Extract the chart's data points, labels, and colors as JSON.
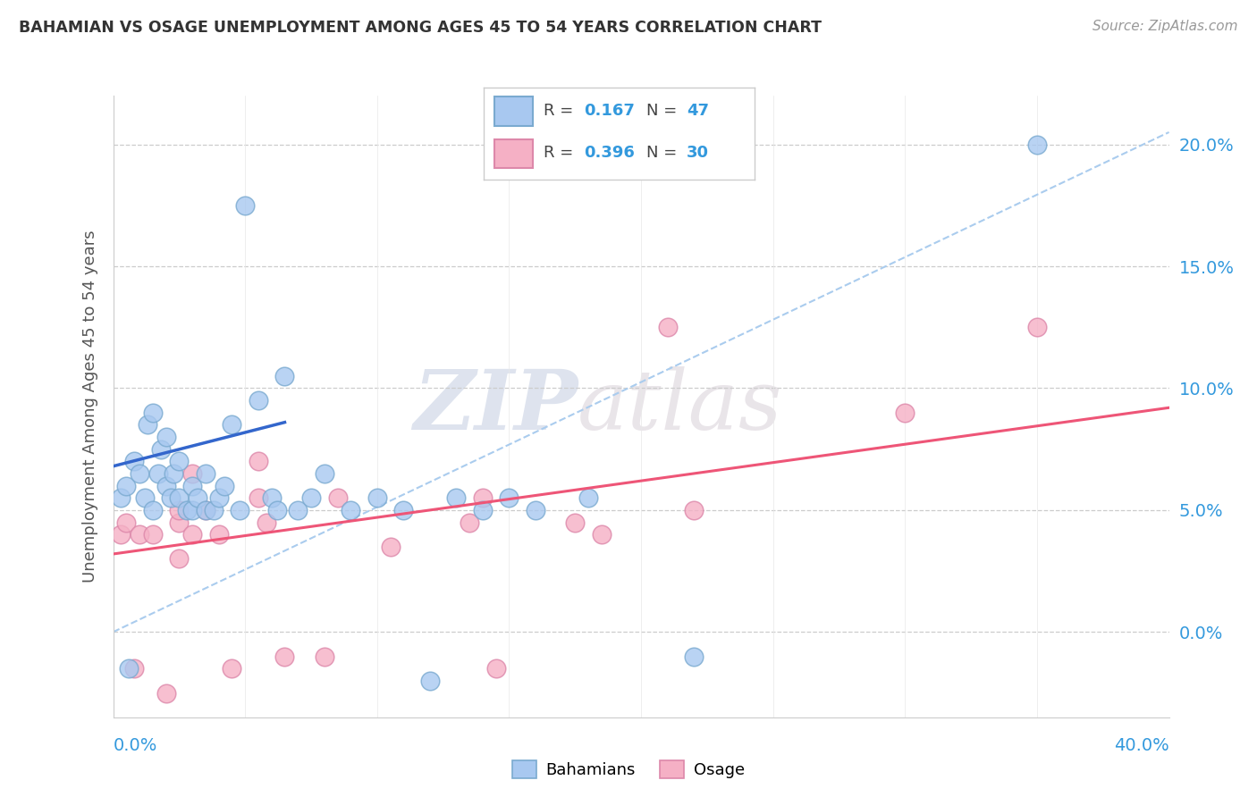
{
  "title": "BAHAMIAN VS OSAGE UNEMPLOYMENT AMONG AGES 45 TO 54 YEARS CORRELATION CHART",
  "source": "Source: ZipAtlas.com",
  "ylabel": "Unemployment Among Ages 45 to 54 years",
  "ytick_vals": [
    0.0,
    5.0,
    10.0,
    15.0,
    20.0
  ],
  "ytick_labels": [
    "0.0%",
    "5.0%",
    "10.0%",
    "15.0%",
    "20.0%"
  ],
  "xlim": [
    0.0,
    40.0
  ],
  "ylim": [
    -3.5,
    22.0
  ],
  "bahamian_color": "#a8c8f0",
  "bahamian_edge": "#7aaad0",
  "osage_color": "#f5b0c5",
  "osage_edge": "#dd88aa",
  "trend_blue": "#3366cc",
  "trend_pink": "#ee5577",
  "trend_dashed_color": "#aaccee",
  "watermark_zip": "ZIP",
  "watermark_atlas": "atlas",
  "r1": "0.167",
  "n1": "47",
  "r2": "0.396",
  "n2": "30",
  "legend_value_color": "#3399dd",
  "bahamian_x": [
    0.3,
    0.5,
    0.6,
    0.8,
    1.0,
    1.2,
    1.3,
    1.5,
    1.5,
    1.7,
    1.8,
    2.0,
    2.0,
    2.2,
    2.3,
    2.5,
    2.5,
    2.8,
    3.0,
    3.0,
    3.2,
    3.5,
    3.5,
    3.8,
    4.0,
    4.2,
    4.5,
    4.8,
    5.0,
    5.5,
    6.0,
    6.2,
    6.5,
    7.0,
    7.5,
    8.0,
    9.0,
    10.0,
    11.0,
    12.0,
    13.0,
    14.0,
    15.0,
    16.0,
    18.0,
    22.0,
    35.0
  ],
  "bahamian_y": [
    5.5,
    6.0,
    -1.5,
    7.0,
    6.5,
    5.5,
    8.5,
    5.0,
    9.0,
    6.5,
    7.5,
    6.0,
    8.0,
    5.5,
    6.5,
    7.0,
    5.5,
    5.0,
    5.0,
    6.0,
    5.5,
    5.0,
    6.5,
    5.0,
    5.5,
    6.0,
    8.5,
    5.0,
    17.5,
    9.5,
    5.5,
    5.0,
    10.5,
    5.0,
    5.5,
    6.5,
    5.0,
    5.5,
    5.0,
    -2.0,
    5.5,
    5.0,
    5.5,
    5.0,
    5.5,
    -1.0,
    20.0
  ],
  "osage_x": [
    0.3,
    0.5,
    0.8,
    1.0,
    1.5,
    2.0,
    2.5,
    2.5,
    2.5,
    3.0,
    3.0,
    3.5,
    4.0,
    4.5,
    5.5,
    5.5,
    5.8,
    6.5,
    8.0,
    8.5,
    10.5,
    13.5,
    14.0,
    14.5,
    17.5,
    18.5,
    21.0,
    22.0,
    30.0,
    35.0
  ],
  "osage_y": [
    4.0,
    4.5,
    -1.5,
    4.0,
    4.0,
    -2.5,
    4.5,
    5.0,
    3.0,
    4.0,
    6.5,
    5.0,
    4.0,
    -1.5,
    7.0,
    5.5,
    4.5,
    -1.0,
    -1.0,
    5.5,
    3.5,
    4.5,
    5.5,
    -1.5,
    4.5,
    4.0,
    12.5,
    5.0,
    9.0,
    12.5
  ],
  "blue_line_x": [
    0.0,
    6.5
  ],
  "blue_line_y": [
    6.8,
    8.6
  ],
  "pink_line_x": [
    0.0,
    40.0
  ],
  "pink_line_y": [
    3.2,
    9.2
  ],
  "dashed_line_x": [
    0.0,
    40.0
  ],
  "dashed_line_y": [
    0.0,
    20.5
  ]
}
